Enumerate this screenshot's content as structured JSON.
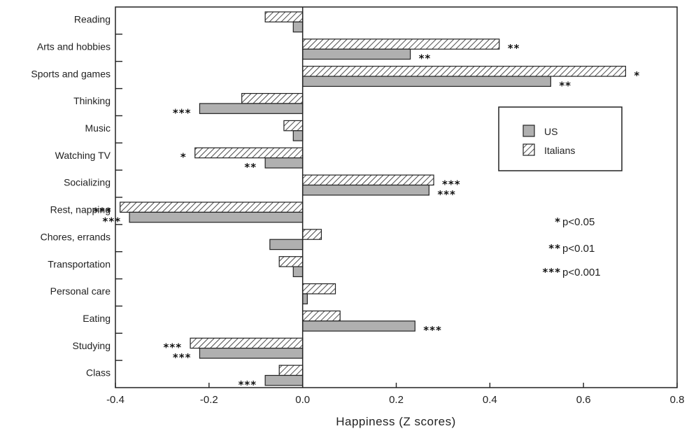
{
  "chart_data": {
    "type": "bar",
    "orientation": "horizontal",
    "xlabel": "Happiness (Z scores)",
    "xlim": [
      -0.4,
      0.8
    ],
    "xticks": [
      "-0.4",
      "-0.2",
      "0.0",
      "0.2",
      "0.4",
      "0.6",
      "0.8"
    ],
    "tick_values": [
      -0.4,
      -0.2,
      0.0,
      0.2,
      0.4,
      0.6,
      0.8
    ],
    "categories": [
      "Reading",
      "Arts and hobbies",
      "Sports and games",
      "Thinking",
      "Music",
      "Watching TV",
      "Socializing",
      "Rest, napping",
      "Chores, errands",
      "Transportation",
      "Personal care",
      "Eating",
      "Studying",
      "Class"
    ],
    "series": [
      {
        "name": "US",
        "color": "#b0b0b0",
        "pattern": "solid",
        "values": [
          -0.02,
          0.23,
          0.53,
          -0.22,
          -0.02,
          -0.08,
          0.27,
          -0.37,
          -0.07,
          -0.02,
          0.01,
          0.24,
          -0.22,
          -0.08
        ],
        "significance": [
          "",
          "**",
          "**",
          "***",
          "",
          "**",
          "***",
          "***",
          "",
          "",
          "",
          "***",
          "***",
          "***"
        ]
      },
      {
        "name": "Italians",
        "color": "#ffffff",
        "pattern": "hatched",
        "values": [
          -0.08,
          0.42,
          0.69,
          -0.13,
          -0.04,
          -0.23,
          0.28,
          -0.39,
          0.04,
          -0.05,
          0.07,
          0.08,
          -0.24,
          -0.05
        ],
        "significance": [
          "",
          "**",
          "*",
          "",
          "",
          "*",
          "***",
          "***",
          "",
          "",
          "",
          "",
          "***",
          ""
        ]
      }
    ],
    "legend": {
      "position": "right-upper",
      "entries": [
        "US",
        "Italians"
      ]
    },
    "significance_key": [
      {
        "stars": "*",
        "label": "p<0.05"
      },
      {
        "stars": "**",
        "label": "p<0.01"
      },
      {
        "stars": "***",
        "label": "p<0.001"
      }
    ],
    "grid": false
  }
}
